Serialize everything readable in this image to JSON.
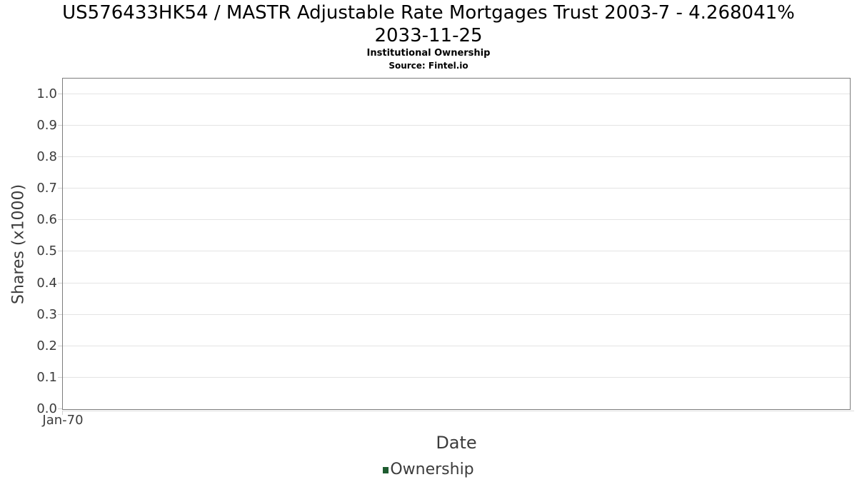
{
  "header": {
    "title_line1": "US576433HK54 / MASTR Adjustable Rate Mortgages Trust 2003-7 - 4.268041%",
    "title_line2": "2033-11-25",
    "subtitle": "Institutional Ownership",
    "source": "Source: Fintel.io"
  },
  "chart_data": {
    "type": "line",
    "title": "US576433HK54 / MASTR Adjustable Rate Mortgages Trust 2003-7 - 4.268041% 2033-11-25",
    "subtitle": "Institutional Ownership",
    "source": "Source: Fintel.io",
    "xlabel": "Date",
    "ylabel": "Shares (x1000)",
    "x_tick_labels": [
      "Jan-70"
    ],
    "y_tick_labels": [
      "0.0",
      "0.1",
      "0.2",
      "0.3",
      "0.4",
      "0.5",
      "0.6",
      "0.7",
      "0.8",
      "0.9",
      "1.0"
    ],
    "ylim": [
      0,
      1.05
    ],
    "grid": true,
    "legend": {
      "position": "bottom-center",
      "entries": [
        {
          "label": "Ownership",
          "color": "#1e5c30"
        }
      ]
    },
    "series": [
      {
        "name": "Ownership",
        "x": [],
        "values": []
      }
    ]
  },
  "colors": {
    "background": "#ffffff",
    "plot_border": "#7d7d7d",
    "gridline": "#e4e4e4",
    "tick_mark": "#cfcfcf",
    "x_axis_line": "#dcdcdc",
    "axis_text": "#3c3c3c",
    "title_text": "#000000",
    "legend_swatch": "#1e5c30"
  }
}
